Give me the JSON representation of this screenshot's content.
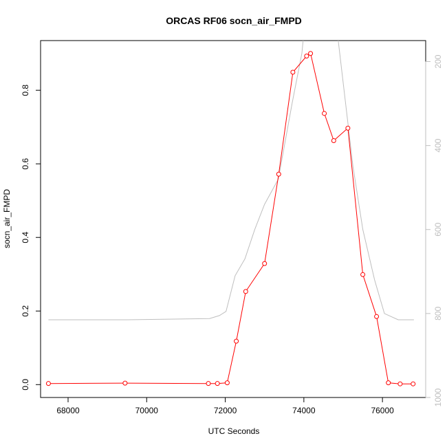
{
  "chart_data": {
    "type": "line",
    "title": "ORCAS RF06 socn_air_FMPD",
    "xlabel": "UTC Seconds",
    "ylabel": "socn_air_FMPD",
    "xlim": [
      67300,
      77100
    ],
    "ylim": [
      -0.035,
      0.935
    ],
    "x_ticks": [
      68000,
      70000,
      72000,
      74000,
      76000
    ],
    "y_ticks": [
      0.0,
      0.2,
      0.4,
      0.6,
      0.8
    ],
    "y_tick_labels": [
      "0.0",
      "0.2",
      "0.4",
      "0.6",
      "0.8"
    ],
    "y2_ticks": [
      200,
      400,
      600,
      800,
      1000
    ],
    "y2_lim": [
      1000,
      150
    ],
    "y2_reversed": true,
    "grid": false,
    "series": [
      {
        "color": "#ff0000",
        "style": "line-with-open-circles",
        "x": [
          67500,
          69450,
          71570,
          71800,
          72050,
          72280,
          72520,
          73000,
          73360,
          73720,
          74070,
          74170,
          74520,
          74760,
          75120,
          75500,
          75850,
          76150,
          76450,
          76780
        ],
        "values": [
          0.003,
          0.004,
          0.003,
          0.003,
          0.005,
          0.118,
          0.253,
          0.329,
          0.572,
          0.849,
          0.893,
          0.9,
          0.737,
          0.663,
          0.697,
          0.299,
          0.185,
          0.005,
          0.002,
          0.002
        ]
      },
      {
        "color": "#bebebe",
        "style": "line",
        "axis": "right",
        "x": [
          67500,
          69500,
          71600,
          71850,
          72020,
          72250,
          72500,
          72750,
          73000,
          73350,
          73700,
          73950,
          74000,
          74300,
          74850,
          75000,
          75250,
          75500,
          75800,
          76050,
          76400,
          76800
        ],
        "values": [
          815,
          815,
          812,
          805,
          795,
          710,
          670,
          600,
          540,
          480,
          300,
          180,
          130,
          130,
          130,
          250,
          450,
          600,
          720,
          800,
          815,
          815
        ]
      }
    ]
  }
}
